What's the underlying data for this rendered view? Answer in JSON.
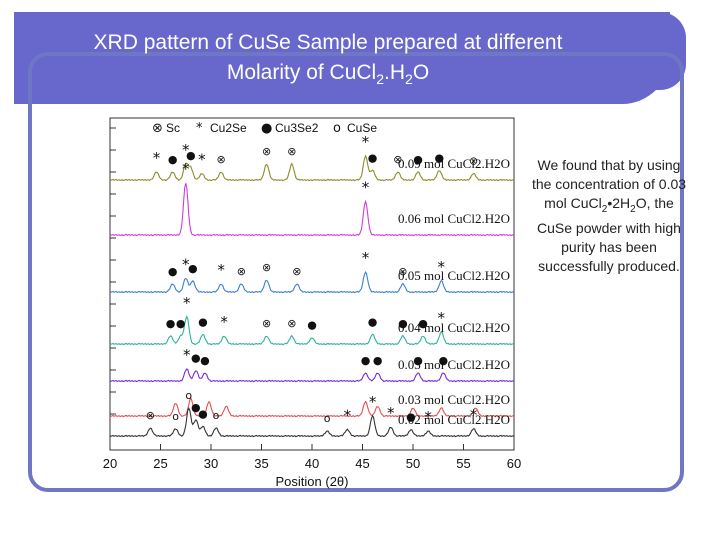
{
  "slide": {
    "title_line1": "XRD pattern of CuSe Sample prepared at different",
    "title_line2_pre": "Molarity of CuCl",
    "title_sub1": "2",
    "title_mid": ".H",
    "title_sub2": "2",
    "title_post": "O",
    "side_text_pre": "We found that by using the concentration of 0.03 mol CuCl",
    "side_sub1": "2",
    "side_mid": "•2H",
    "side_sub2": "2",
    "side_text_post": "O, the CuSe powder with high purity has been successfully produced."
  },
  "chart_data": {
    "type": "line",
    "xlabel": "Position (2θ)",
    "xlim": [
      20,
      60
    ],
    "xticks": [
      20,
      25,
      30,
      35,
      40,
      45,
      50,
      55,
      60
    ],
    "legend": [
      {
        "marker": "⊗",
        "label": "Sc"
      },
      {
        "marker": "*",
        "label": "Cu2Se"
      },
      {
        "marker": "●",
        "label": "Cu3Se2"
      },
      {
        "marker": "o",
        "label": "CuSe"
      }
    ],
    "series": [
      {
        "name": "0.09 mol CuCl2.H2O",
        "color": "#8d8d2a",
        "values": [],
        "peaks": [
          [
            24.6,
            1.0,
            "*"
          ],
          [
            26.2,
            1.0,
            "●"
          ],
          [
            27.5,
            2.0,
            "*"
          ],
          [
            28.0,
            1.5,
            "●"
          ],
          [
            29.1,
            0.8,
            "*"
          ],
          [
            31.0,
            1.0,
            "⊗"
          ],
          [
            35.5,
            2.0,
            "⊗"
          ],
          [
            38.0,
            2.0,
            "⊗"
          ],
          [
            45.3,
            3.0,
            "*"
          ],
          [
            46.0,
            1.2,
            "●"
          ],
          [
            48.5,
            1.0,
            "⊗"
          ],
          [
            50.5,
            1.0,
            "●"
          ],
          [
            52.6,
            1.2,
            "●"
          ],
          [
            56.0,
            0.8,
            "⊗"
          ]
        ]
      },
      {
        "name": "0.06 mol CuCl2.H2O",
        "color": "#d23bd6",
        "values": [],
        "peaks": [
          [
            27.5,
            6.5,
            "*"
          ],
          [
            45.3,
            4.2,
            "*"
          ]
        ]
      },
      {
        "name": "0.05 mol CuCl2.H2O",
        "color": "#3a7fd0",
        "values": [],
        "peaks": [
          [
            26.2,
            1.0,
            "●"
          ],
          [
            27.5,
            1.7,
            "*"
          ],
          [
            28.2,
            1.4,
            "●"
          ],
          [
            31.0,
            1.0,
            "*"
          ],
          [
            33.0,
            1.0,
            "⊗"
          ],
          [
            35.5,
            1.5,
            "⊗"
          ],
          [
            38.5,
            1.0,
            "⊗"
          ],
          [
            45.3,
            2.5,
            "*"
          ],
          [
            49.0,
            1.0,
            "⊗"
          ],
          [
            52.8,
            1.4,
            "*"
          ]
        ]
      },
      {
        "name": "0.04 mol CuCl2.H2O",
        "color": "#2db39c",
        "values": [],
        "peaks": [
          [
            26.0,
            1.0,
            "●"
          ],
          [
            27.0,
            1.0,
            "●"
          ],
          [
            27.6,
            3.4,
            "*"
          ],
          [
            29.2,
            1.2,
            "●"
          ],
          [
            31.3,
            1.0,
            "*"
          ],
          [
            35.5,
            1.0,
            "⊗"
          ],
          [
            38.0,
            1.0,
            "⊗"
          ],
          [
            40.0,
            0.8,
            "●"
          ],
          [
            46.0,
            1.2,
            "●"
          ],
          [
            49.0,
            1.0,
            "●"
          ],
          [
            51.0,
            1.0,
            "●"
          ],
          [
            52.8,
            1.5,
            "*"
          ]
        ]
      },
      {
        "name": "0.03 mol CuCl2.H2O",
        "color": "#7a2ad6",
        "values": [],
        "peaks": [
          [
            27.6,
            1.5,
            "*"
          ],
          [
            28.5,
            1.3,
            "●"
          ],
          [
            29.4,
            1.0,
            "●"
          ],
          [
            45.3,
            1.0,
            "●"
          ],
          [
            46.5,
            1.0,
            "●"
          ],
          [
            50.5,
            1.0,
            "●"
          ],
          [
            53.0,
            1.0,
            "●"
          ]
        ]
      },
      {
        "name": "0.03 mol CuCl2.H2O (lower)",
        "color": "#e05050",
        "values": [],
        "peaks": [
          [
            26.5,
            1.6,
            ""
          ],
          [
            28.0,
            2.2,
            ""
          ],
          [
            29.8,
            1.8,
            ""
          ],
          [
            31.5,
            1.2,
            ""
          ],
          [
            45.3,
            1.8,
            ""
          ],
          [
            46.5,
            1.2,
            ""
          ],
          [
            50.0,
            1.0,
            ""
          ],
          [
            52.8,
            1.0,
            ""
          ],
          [
            56.2,
            1.0,
            ""
          ]
        ]
      },
      {
        "name": "0.02 mol CuCl2.H2O",
        "color": "#333333",
        "values": [],
        "peaks": [
          [
            24.0,
            1.0,
            "⊗"
          ],
          [
            26.5,
            0.9,
            "o"
          ],
          [
            27.8,
            3.5,
            "o"
          ],
          [
            28.5,
            2.0,
            "●"
          ],
          [
            29.2,
            1.2,
            "●"
          ],
          [
            30.5,
            1.0,
            "o"
          ],
          [
            41.5,
            0.6,
            "o"
          ],
          [
            43.5,
            0.8,
            "*"
          ],
          [
            46.0,
            2.5,
            "*"
          ],
          [
            47.8,
            1.1,
            "*"
          ],
          [
            49.8,
            0.8,
            "●"
          ],
          [
            51.5,
            0.6,
            "*"
          ],
          [
            56.0,
            0.9,
            "*"
          ]
        ]
      }
    ]
  }
}
